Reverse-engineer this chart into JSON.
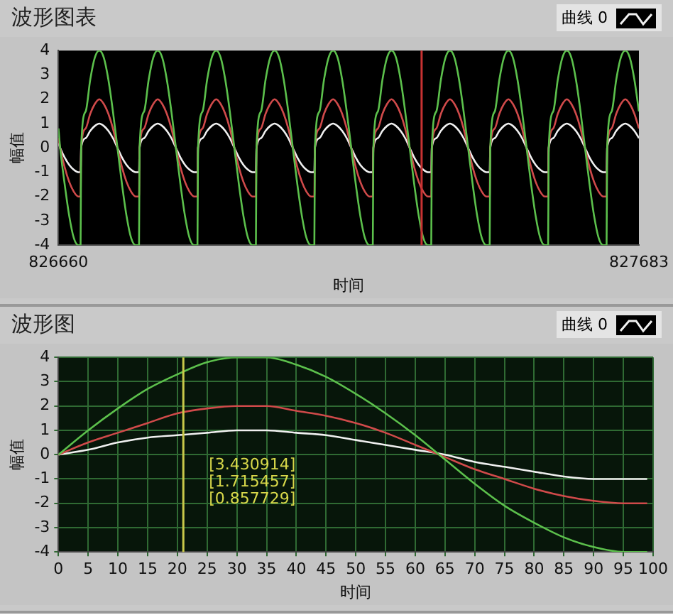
{
  "chart_data": [
    {
      "type": "line",
      "title": "波形图表",
      "xlabel": "时间",
      "ylabel": "幅值",
      "legend": "top right",
      "grid": false,
      "xlim": [
        826660,
        827683
      ],
      "xticks": [
        826660,
        827683
      ],
      "ylim": [
        -4,
        4
      ],
      "yticks": [
        -4,
        -3,
        -2,
        -1,
        0,
        1,
        2,
        3,
        4
      ],
      "ref_lines": [
        {
          "axis": "x",
          "value": 827300,
          "color": "#c83232"
        }
      ],
      "x": [
        826660,
        826663,
        826671,
        826679,
        826687,
        826695,
        826699,
        826700,
        826708,
        826716,
        826724,
        826732,
        826740,
        826748,
        826756,
        826764,
        826772,
        826780,
        826788,
        826796,
        826802,
        826803,
        826811,
        826819,
        826827,
        826835,
        826843,
        826851,
        826859,
        826867,
        826875,
        826883,
        826891,
        826899,
        826905,
        826906,
        826914,
        826922,
        826930,
        826938,
        826946,
        826954,
        826962,
        826970,
        826978,
        826986,
        826994,
        827002,
        827008,
        827009,
        827017,
        827025,
        827033,
        827041,
        827049,
        827057,
        827065,
        827073,
        827081,
        827089,
        827097,
        827105,
        827111,
        827112,
        827120,
        827128,
        827136,
        827144,
        827152,
        827160,
        827168,
        827176,
        827184,
        827192,
        827200,
        827208,
        827214,
        827215,
        827223,
        827231,
        827239,
        827247,
        827255,
        827263,
        827271,
        827279,
        827287,
        827295,
        827303,
        827311,
        827317,
        827318,
        827326,
        827334,
        827342,
        827350,
        827358,
        827366,
        827374,
        827382,
        827390,
        827398,
        827406,
        827414,
        827420,
        827421,
        827429,
        827437,
        827445,
        827453,
        827461,
        827469,
        827477,
        827485,
        827493,
        827501,
        827509,
        827517,
        827523,
        827524,
        827532,
        827540,
        827548,
        827556,
        827564,
        827572,
        827580,
        827588,
        827596,
        827604,
        827612,
        827620,
        827626,
        827627,
        827635,
        827643,
        827651,
        827659,
        827667,
        827675,
        827683
      ],
      "series": [
        {
          "color": "#5cc04c",
          "values": [
            0.8,
            0,
            -1.5,
            -2.8,
            -3.7,
            -4,
            -4,
            0,
            1.5,
            2.8,
            3.7,
            4,
            3.7,
            2.8,
            1.5,
            0,
            -1.5,
            -2.8,
            -3.7,
            -4,
            -4,
            0,
            1.5,
            2.8,
            3.7,
            4,
            3.7,
            2.8,
            1.5,
            0,
            -1.5,
            -2.8,
            -3.7,
            -4,
            -4,
            0,
            1.5,
            2.8,
            3.7,
            4,
            3.7,
            2.8,
            1.5,
            0,
            -1.5,
            -2.8,
            -3.7,
            -4,
            -4,
            0,
            1.5,
            2.8,
            3.7,
            4,
            3.7,
            2.8,
            1.5,
            0,
            -1.5,
            -2.8,
            -3.7,
            -4,
            -4,
            0,
            1.5,
            2.8,
            3.7,
            4,
            3.7,
            2.8,
            1.5,
            0,
            -1.5,
            -2.8,
            -3.7,
            -4,
            -4,
            0,
            1.5,
            2.8,
            3.7,
            4,
            3.7,
            2.8,
            1.5,
            0,
            -1.5,
            -2.8,
            -3.7,
            -4,
            -4,
            0,
            1.5,
            2.8,
            3.7,
            4,
            3.7,
            2.8,
            1.5,
            0,
            -1.5,
            -2.8,
            -3.7,
            -4,
            -4,
            0,
            1.5,
            2.8,
            3.7,
            4,
            3.7,
            2.8,
            1.5,
            0,
            -1.5,
            -2.8,
            -3.7,
            -4,
            -4,
            0,
            1.5,
            2.8,
            3.7,
            4,
            3.7,
            2.8,
            1.5,
            0,
            -1.5,
            -2.8,
            -3.7,
            -4,
            -4,
            0,
            1.5,
            2.8,
            3.7,
            4,
            3.7,
            2.8,
            1.5
          ]
        },
        {
          "color": "#d04a4a",
          "values": [
            0.4,
            0,
            -0.8,
            -1.4,
            -1.8,
            -2,
            -2,
            0,
            0.8,
            1.4,
            1.8,
            2,
            1.8,
            1.4,
            0.8,
            0,
            -0.8,
            -1.4,
            -1.8,
            -2,
            -2,
            0,
            0.8,
            1.4,
            1.8,
            2,
            1.8,
            1.4,
            0.8,
            0,
            -0.8,
            -1.4,
            -1.8,
            -2,
            -2,
            0,
            0.8,
            1.4,
            1.8,
            2,
            1.8,
            1.4,
            0.8,
            0,
            -0.8,
            -1.4,
            -1.8,
            -2,
            -2,
            0,
            0.8,
            1.4,
            1.8,
            2,
            1.8,
            1.4,
            0.8,
            0,
            -0.8,
            -1.4,
            -1.8,
            -2,
            -2,
            0,
            0.8,
            1.4,
            1.8,
            2,
            1.8,
            1.4,
            0.8,
            0,
            -0.8,
            -1.4,
            -1.8,
            -2,
            -2,
            0,
            0.8,
            1.4,
            1.8,
            2,
            1.8,
            1.4,
            0.8,
            0,
            -0.8,
            -1.4,
            -1.8,
            -2,
            -2,
            0,
            0.8,
            1.4,
            1.8,
            2,
            1.8,
            1.4,
            0.8,
            0,
            -0.8,
            -1.4,
            -1.8,
            -2,
            -2,
            0,
            0.8,
            1.4,
            1.8,
            2,
            1.8,
            1.4,
            0.8,
            0,
            -0.8,
            -1.4,
            -1.8,
            -2,
            -2,
            0,
            0.8,
            1.4,
            1.8,
            2,
            1.8,
            1.4,
            0.8,
            0,
            -0.8,
            -1.4,
            -1.8,
            -2,
            -2,
            0,
            0.8,
            1.4,
            1.8,
            2,
            1.8,
            1.4,
            0.8
          ]
        },
        {
          "name": "曲线 0",
          "color": "#f0f0f0",
          "values": [
            0.2,
            0,
            -0.4,
            -0.7,
            -0.9,
            -1,
            -1,
            0,
            0.4,
            0.7,
            0.9,
            1,
            0.9,
            0.7,
            0.4,
            0,
            -0.4,
            -0.7,
            -0.9,
            -1,
            -1,
            0,
            0.4,
            0.7,
            0.9,
            1,
            0.9,
            0.7,
            0.4,
            0,
            -0.4,
            -0.7,
            -0.9,
            -1,
            -1,
            0,
            0.4,
            0.7,
            0.9,
            1,
            0.9,
            0.7,
            0.4,
            0,
            -0.4,
            -0.7,
            -0.9,
            -1,
            -1,
            0,
            0.4,
            0.7,
            0.9,
            1,
            0.9,
            0.7,
            0.4,
            0,
            -0.4,
            -0.7,
            -0.9,
            -1,
            -1,
            0,
            0.4,
            0.7,
            0.9,
            1,
            0.9,
            0.7,
            0.4,
            0,
            -0.4,
            -0.7,
            -0.9,
            -1,
            -1,
            0,
            0.4,
            0.7,
            0.9,
            1,
            0.9,
            0.7,
            0.4,
            0,
            -0.4,
            -0.7,
            -0.9,
            -1,
            -1,
            0,
            0.4,
            0.7,
            0.9,
            1,
            0.9,
            0.7,
            0.4,
            0,
            -0.4,
            -0.7,
            -0.9,
            -1,
            -1,
            0,
            0.4,
            0.7,
            0.9,
            1,
            0.9,
            0.7,
            0.4,
            0,
            -0.4,
            -0.7,
            -0.9,
            -1,
            -1,
            0,
            0.4,
            0.7,
            0.9,
            1,
            0.9,
            0.7,
            0.4,
            0,
            -0.4,
            -0.7,
            -0.9,
            -1,
            -1,
            0,
            0.4,
            0.7,
            0.9,
            1,
            0.9,
            0.7,
            0.4
          ]
        }
      ]
    },
    {
      "type": "line",
      "title": "波形图",
      "xlabel": "时间",
      "ylabel": "幅值",
      "legend": "top right",
      "grid": true,
      "xlim": [
        0,
        100
      ],
      "xticks": [
        0,
        5,
        10,
        15,
        20,
        25,
        30,
        35,
        40,
        45,
        50,
        55,
        60,
        65,
        70,
        75,
        80,
        85,
        90,
        95,
        100
      ],
      "ylim": [
        -4,
        4
      ],
      "yticks": [
        -4,
        -3,
        -2,
        -1,
        0,
        1,
        2,
        3,
        4
      ],
      "ref_lines": [
        {
          "axis": "x",
          "value": 21,
          "color": "#c8c84a"
        }
      ],
      "annotations": [
        "[3.430914]",
        "[1.715457]",
        "[0.857729]"
      ],
      "x": [
        0,
        5,
        10,
        15,
        20,
        25,
        30,
        35,
        40,
        45,
        50,
        55,
        60,
        65,
        70,
        75,
        80,
        85,
        90,
        95,
        99
      ],
      "series": [
        {
          "color": "#5cc04c",
          "values": [
            0,
            1,
            1.9,
            2.7,
            3.3,
            3.8,
            4,
            4,
            3.7,
            3.2,
            2.5,
            1.7,
            0.8,
            -0.2,
            -1.2,
            -2.1,
            -2.8,
            -3.4,
            -3.8,
            -4,
            -4
          ]
        },
        {
          "color": "#d04a4a",
          "values": [
            0,
            0.5,
            0.9,
            1.3,
            1.7,
            1.9,
            2,
            2,
            1.8,
            1.6,
            1.3,
            0.9,
            0.4,
            -0.1,
            -0.6,
            -1,
            -1.4,
            -1.7,
            -1.9,
            -2,
            -2
          ]
        },
        {
          "name": "曲线 0",
          "color": "#f0f0f0",
          "values": [
            0,
            0.2,
            0.5,
            0.7,
            0.8,
            0.9,
            1,
            1,
            0.9,
            0.8,
            0.6,
            0.4,
            0.2,
            0,
            -0.3,
            -0.5,
            -0.7,
            -0.9,
            -1,
            -1,
            -1
          ]
        }
      ]
    }
  ]
}
